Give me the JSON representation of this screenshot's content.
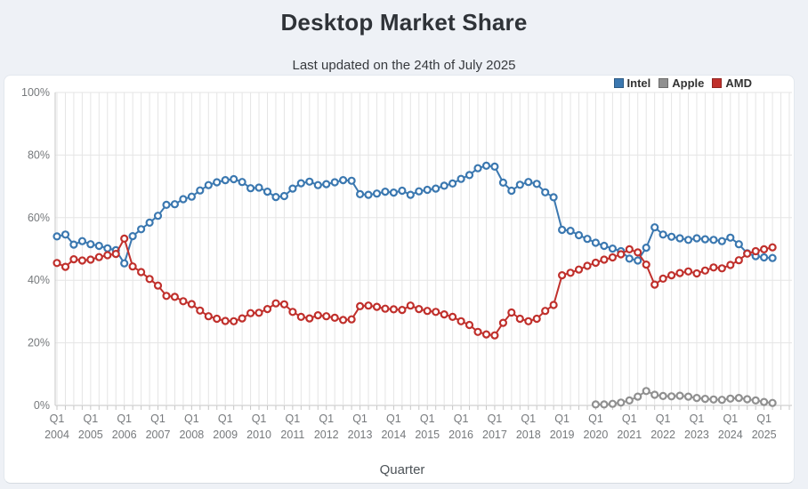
{
  "page": {
    "title": "Desktop Market Share",
    "subtitle": "Last updated on the 24th of July 2025"
  },
  "legend": [
    {
      "label": "Intel",
      "color": "#3b78b0"
    },
    {
      "label": "Apple",
      "color": "#909090"
    },
    {
      "label": "AMD",
      "color": "#c0302c"
    }
  ],
  "chart_data": {
    "type": "line",
    "title": "Desktop Market Share",
    "subtitle": "Last updated on the 24th of July 2025",
    "xlabel": "Quarter",
    "ylabel": "",
    "ylim": [
      0,
      100
    ],
    "ytick_step": 20,
    "ytick_labels": [
      "0%",
      "20%",
      "40%",
      "60%",
      "80%",
      "100%"
    ],
    "grid": true,
    "legend_position": "top-right",
    "x_is_quarterly": true,
    "x_start": "Q1 2004",
    "x_end": "Q2 2025",
    "x_points": 86,
    "x_tick_prefix": "Q1",
    "years": [
      "2004",
      "2005",
      "2006",
      "2007",
      "2008",
      "2009",
      "2010",
      "2011",
      "2012",
      "2013",
      "2014",
      "2015",
      "2016",
      "2017",
      "2018",
      "2019",
      "2020",
      "2021",
      "2022",
      "2023",
      "2024",
      "2025"
    ],
    "series": [
      {
        "name": "Apple",
        "color": "#909090",
        "start_index": 64,
        "first_quarter": "Q1 2020",
        "values": [
          0.3,
          0.3,
          0.5,
          0.9,
          1.6,
          2.8,
          4.6,
          3.4,
          3.0,
          2.9,
          3.1,
          2.8,
          2.4,
          2.1,
          1.9,
          1.8,
          2.2,
          2.4,
          2.0,
          1.6,
          1.1,
          0.8
        ]
      },
      {
        "name": "Intel",
        "color": "#3b78b0",
        "start_index": 0,
        "first_quarter": "Q1 2004",
        "values": [
          54.0,
          54.6,
          51.4,
          52.5,
          51.5,
          51.0,
          50.2,
          49.6,
          45.4,
          54.1,
          56.3,
          58.4,
          60.6,
          64.1,
          64.3,
          65.9,
          66.7,
          68.7,
          70.4,
          71.3,
          72.0,
          72.3,
          71.4,
          69.4,
          69.6,
          68.3,
          66.6,
          66.9,
          69.3,
          71.0,
          71.5,
          70.4,
          70.7,
          71.3,
          72.0,
          71.8,
          67.5,
          67.3,
          67.7,
          68.3,
          68.0,
          68.6,
          67.3,
          68.4,
          68.9,
          69.3,
          70.2,
          70.9,
          72.4,
          73.6,
          75.8,
          76.6,
          76.3,
          71.2,
          68.6,
          70.5,
          71.4,
          70.8,
          68.1,
          66.5,
          56.1,
          55.8,
          54.4,
          53.2,
          52.0,
          51.0,
          50.1,
          49.3,
          46.9,
          46.3,
          50.4,
          56.9,
          54.6,
          53.9,
          53.4,
          52.9,
          53.4,
          53.1,
          52.9,
          52.5,
          53.6,
          51.5,
          48.6,
          47.7,
          47.3,
          47.1
        ]
      },
      {
        "name": "AMD",
        "color": "#c0302c",
        "start_index": 0,
        "first_quarter": "Q1 2004",
        "values": [
          45.5,
          44.3,
          46.7,
          46.3,
          46.6,
          47.4,
          48.0,
          48.4,
          53.3,
          44.4,
          42.6,
          40.4,
          38.3,
          35.0,
          34.7,
          33.3,
          32.4,
          30.3,
          28.5,
          27.7,
          27.0,
          26.9,
          27.8,
          29.5,
          29.6,
          30.8,
          32.6,
          32.3,
          29.9,
          28.3,
          27.8,
          28.8,
          28.5,
          28.0,
          27.3,
          27.5,
          31.7,
          31.9,
          31.5,
          30.9,
          30.7,
          30.5,
          31.9,
          30.8,
          30.2,
          29.9,
          29.1,
          28.3,
          26.9,
          25.7,
          23.5,
          22.7,
          22.4,
          26.4,
          29.7,
          27.7,
          26.9,
          27.7,
          30.2,
          32.1,
          41.6,
          42.4,
          43.4,
          44.6,
          45.6,
          46.6,
          47.3,
          48.3,
          49.9,
          48.9,
          45.0,
          38.6,
          40.5,
          41.6,
          42.3,
          42.8,
          42.2,
          43.1,
          44.1,
          43.8,
          44.9,
          46.4,
          48.5,
          49.3,
          49.9,
          50.5
        ]
      }
    ],
    "style": {
      "plot_bg": "#ffffff",
      "page_bg": "#eef1f6",
      "grid_color": "#e5e5e5",
      "axis_line_color": "#c6c6c6",
      "tick_label_color": "#76797c",
      "axis_title_color": "#4d5358"
    }
  }
}
